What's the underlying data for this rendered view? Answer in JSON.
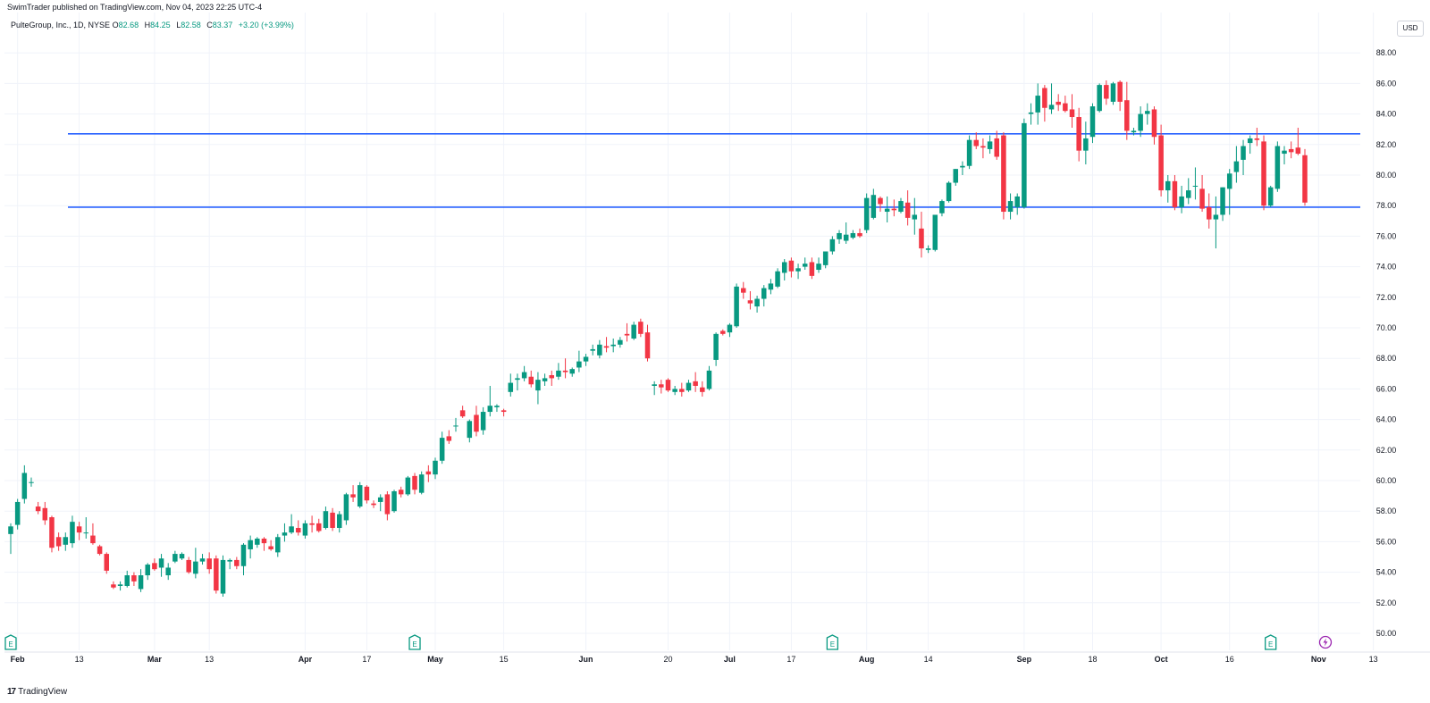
{
  "header": {
    "published": "SwimTrader published on TradingView.com, Nov 04, 2023 22:25 UTC-4"
  },
  "legend": {
    "symbol": "PulteGroup, Inc., 1D, NYSE",
    "open_label": "O",
    "open": "82.68",
    "high_label": "H",
    "high": "84.25",
    "low_label": "L",
    "low": "82.58",
    "close_label": "C",
    "close": "83.37",
    "change": "+3.20 (+3.99%)"
  },
  "currency": "USD",
  "footer": {
    "brand": "TradingView",
    "logo": "17"
  },
  "colors": {
    "up": "#089981",
    "down": "#f23645",
    "level": "#2962ff",
    "grid": "#f0f3fa"
  },
  "chart_data": {
    "type": "candlestick",
    "ylim": [
      49.2,
      89.0
    ],
    "y_ticks": [
      50,
      52,
      54,
      56,
      58,
      60,
      62,
      64,
      66,
      68,
      70,
      72,
      74,
      76,
      78,
      80,
      82,
      84,
      86,
      88
    ],
    "x_ticks": [
      {
        "label": "Feb",
        "i": 1,
        "major": true
      },
      {
        "label": "13",
        "i": 10,
        "major": false
      },
      {
        "label": "Mar",
        "i": 21,
        "major": true
      },
      {
        "label": "13",
        "i": 29,
        "major": false
      },
      {
        "label": "Apr",
        "i": 43,
        "major": true
      },
      {
        "label": "17",
        "i": 52,
        "major": false
      },
      {
        "label": "May",
        "i": 62,
        "major": true
      },
      {
        "label": "15",
        "i": 72,
        "major": false
      },
      {
        "label": "Jun",
        "i": 84,
        "major": true
      },
      {
        "label": "20",
        "i": 96,
        "major": false
      },
      {
        "label": "Jul",
        "i": 105,
        "major": true
      },
      {
        "label": "17",
        "i": 114,
        "major": false
      },
      {
        "label": "Aug",
        "i": 125,
        "major": true
      },
      {
        "label": "14",
        "i": 134,
        "major": false
      },
      {
        "label": "Sep",
        "i": 148,
        "major": true
      },
      {
        "label": "18",
        "i": 158,
        "major": false
      },
      {
        "label": "Oct",
        "i": 168,
        "major": true
      },
      {
        "label": "16",
        "i": 178,
        "major": false
      },
      {
        "label": "Nov",
        "i": 191,
        "major": true
      },
      {
        "label": "13",
        "i": 199,
        "major": false
      }
    ],
    "horizontal_levels": [
      82.7,
      77.9
    ],
    "earnings_markers": [
      0,
      59,
      120,
      184
    ],
    "event_markers": [
      192
    ],
    "ohlc": [
      [
        56.5,
        57.2,
        55.2,
        57.0
      ],
      [
        57.1,
        58.8,
        56.8,
        58.6
      ],
      [
        58.8,
        61.0,
        58.5,
        60.5
      ],
      [
        59.9,
        60.2,
        59.6,
        59.9
      ],
      [
        58.3,
        58.6,
        57.8,
        58.0
      ],
      [
        58.2,
        58.6,
        57.1,
        57.4
      ],
      [
        57.6,
        57.7,
        55.3,
        55.6
      ],
      [
        56.3,
        56.6,
        55.4,
        55.7
      ],
      [
        55.8,
        56.6,
        55.4,
        56.3
      ],
      [
        55.9,
        57.7,
        55.6,
        57.3
      ],
      [
        57.0,
        57.3,
        56.1,
        56.6
      ],
      [
        56.6,
        57.6,
        56.2,
        56.6
      ],
      [
        56.4,
        57.2,
        55.8,
        55.9
      ],
      [
        55.7,
        55.8,
        55.1,
        55.2
      ],
      [
        55.2,
        55.3,
        53.9,
        54.1
      ],
      [
        53.2,
        53.4,
        52.9,
        53.0
      ],
      [
        53.1,
        53.4,
        52.8,
        53.2
      ],
      [
        53.1,
        54.1,
        53.0,
        53.8
      ],
      [
        53.8,
        54.0,
        53.1,
        53.4
      ],
      [
        52.9,
        54.2,
        52.7,
        53.8
      ],
      [
        53.8,
        54.6,
        53.5,
        54.5
      ],
      [
        54.6,
        54.9,
        54.1,
        54.2
      ],
      [
        54.3,
        55.2,
        53.7,
        54.9
      ],
      [
        53.8,
        54.6,
        53.5,
        54.3
      ],
      [
        54.7,
        55.4,
        54.6,
        55.2
      ],
      [
        54.9,
        55.3,
        54.8,
        55.2
      ],
      [
        54.8,
        55.0,
        53.9,
        54.0
      ],
      [
        53.9,
        55.6,
        53.6,
        54.7
      ],
      [
        54.7,
        55.2,
        54.5,
        54.9
      ],
      [
        54.9,
        55.3,
        53.9,
        54.2
      ],
      [
        54.9,
        55.1,
        52.6,
        52.8
      ],
      [
        52.6,
        55.1,
        52.4,
        54.8
      ],
      [
        54.7,
        54.9,
        54.2,
        54.8
      ],
      [
        54.8,
        55.0,
        54.2,
        54.4
      ],
      [
        54.4,
        55.9,
        53.8,
        55.8
      ],
      [
        55.5,
        56.4,
        54.9,
        56.1
      ],
      [
        55.8,
        56.3,
        55.6,
        56.2
      ],
      [
        56.2,
        56.3,
        55.4,
        55.9
      ],
      [
        55.7,
        56.1,
        55.4,
        55.5
      ],
      [
        55.3,
        56.5,
        55.0,
        56.3
      ],
      [
        56.4,
        57.2,
        56.0,
        56.6
      ],
      [
        56.6,
        57.8,
        56.5,
        57.0
      ],
      [
        56.9,
        57.4,
        56.4,
        56.6
      ],
      [
        56.4,
        57.4,
        56.2,
        57.2
      ],
      [
        57.2,
        57.7,
        56.6,
        57.1
      ],
      [
        57.2,
        57.5,
        56.6,
        56.7
      ],
      [
        56.9,
        58.3,
        56.8,
        58.0
      ],
      [
        57.9,
        58.2,
        56.7,
        56.9
      ],
      [
        56.9,
        58.0,
        56.6,
        57.8
      ],
      [
        57.4,
        59.2,
        57.1,
        59.1
      ],
      [
        59.1,
        59.7,
        58.6,
        58.9
      ],
      [
        58.3,
        59.9,
        58.2,
        59.7
      ],
      [
        59.6,
        59.7,
        58.5,
        58.7
      ],
      [
        58.5,
        58.7,
        58.2,
        58.4
      ],
      [
        58.6,
        59.1,
        58.0,
        58.9
      ],
      [
        59.1,
        59.3,
        57.4,
        57.8
      ],
      [
        58.0,
        59.4,
        57.9,
        59.3
      ],
      [
        59.4,
        59.6,
        58.9,
        59.1
      ],
      [
        59.1,
        60.3,
        59.0,
        60.2
      ],
      [
        60.3,
        60.5,
        59.1,
        59.4
      ],
      [
        59.2,
        60.6,
        59.1,
        60.4
      ],
      [
        60.6,
        61.0,
        59.9,
        60.4
      ],
      [
        60.4,
        61.5,
        60.1,
        61.3
      ],
      [
        61.3,
        63.2,
        61.1,
        62.8
      ],
      [
        62.9,
        63.3,
        62.4,
        62.6
      ],
      [
        63.6,
        64.1,
        63.2,
        63.6
      ],
      [
        64.6,
        64.9,
        64.1,
        64.2
      ],
      [
        62.8,
        64.0,
        62.5,
        63.9
      ],
      [
        64.3,
        64.9,
        62.9,
        63.2
      ],
      [
        63.3,
        64.8,
        63.0,
        64.5
      ],
      [
        64.5,
        66.2,
        64.2,
        64.9
      ],
      [
        64.8,
        65.0,
        64.5,
        64.9
      ],
      [
        64.6,
        64.7,
        64.2,
        64.5
      ],
      [
        65.8,
        67.0,
        65.5,
        66.4
      ],
      [
        66.6,
        67.0,
        65.9,
        66.7
      ],
      [
        66.7,
        67.5,
        66.5,
        67.1
      ],
      [
        66.8,
        67.2,
        66.1,
        66.3
      ],
      [
        65.9,
        67.1,
        65.0,
        66.6
      ],
      [
        66.5,
        67.0,
        66.2,
        66.7
      ],
      [
        66.9,
        67.2,
        66.2,
        66.7
      ],
      [
        66.8,
        67.7,
        66.6,
        67.2
      ],
      [
        67.2,
        68.0,
        66.7,
        67.1
      ],
      [
        67.0,
        67.4,
        66.8,
        67.3
      ],
      [
        67.4,
        68.5,
        67.1,
        67.8
      ],
      [
        67.8,
        68.3,
        67.5,
        68.1
      ],
      [
        68.5,
        68.9,
        68.2,
        68.6
      ],
      [
        68.2,
        69.2,
        68.0,
        68.9
      ],
      [
        68.8,
        69.4,
        68.4,
        68.7
      ],
      [
        68.8,
        69.3,
        68.4,
        68.9
      ],
      [
        68.9,
        69.4,
        68.7,
        69.2
      ],
      [
        69.6,
        70.3,
        69.1,
        69.5
      ],
      [
        69.3,
        70.4,
        69.2,
        70.2
      ],
      [
        70.4,
        70.6,
        69.4,
        69.6
      ],
      [
        69.7,
        70.2,
        67.8,
        68.0
      ],
      [
        66.2,
        66.5,
        65.6,
        66.3
      ],
      [
        66.3,
        66.6,
        65.7,
        66.1
      ],
      [
        66.6,
        66.7,
        65.8,
        65.9
      ],
      [
        65.8,
        66.2,
        65.6,
        66.0
      ],
      [
        66.0,
        66.4,
        65.5,
        65.8
      ],
      [
        65.9,
        66.6,
        65.8,
        66.4
      ],
      [
        66.5,
        67.1,
        65.8,
        66.2
      ],
      [
        66.1,
        66.5,
        65.5,
        65.8
      ],
      [
        66.0,
        67.5,
        65.9,
        67.2
      ],
      [
        67.9,
        69.7,
        67.5,
        69.6
      ],
      [
        69.8,
        69.9,
        69.5,
        69.6
      ],
      [
        69.7,
        70.3,
        69.4,
        70.2
      ],
      [
        70.1,
        72.9,
        70.0,
        72.7
      ],
      [
        72.6,
        73.0,
        71.9,
        72.3
      ],
      [
        71.8,
        72.4,
        71.2,
        71.6
      ],
      [
        71.4,
        72.1,
        71.0,
        71.9
      ],
      [
        71.9,
        72.8,
        71.4,
        72.6
      ],
      [
        72.5,
        73.2,
        72.2,
        72.9
      ],
      [
        72.7,
        73.9,
        72.6,
        73.7
      ],
      [
        73.6,
        74.5,
        73.1,
        74.3
      ],
      [
        74.4,
        74.6,
        73.3,
        73.7
      ],
      [
        73.7,
        74.2,
        73.2,
        73.9
      ],
      [
        74.0,
        74.6,
        73.8,
        74.2
      ],
      [
        74.3,
        74.6,
        73.2,
        73.4
      ],
      [
        73.8,
        74.6,
        73.6,
        74.2
      ],
      [
        74.1,
        75.0,
        73.9,
        75.0
      ],
      [
        75.0,
        76.0,
        74.8,
        75.8
      ],
      [
        75.8,
        76.4,
        75.5,
        76.2
      ],
      [
        75.7,
        76.9,
        75.5,
        76.1
      ],
      [
        75.9,
        76.4,
        75.8,
        76.2
      ],
      [
        76.2,
        76.5,
        75.9,
        76.0
      ],
      [
        76.4,
        78.8,
        76.2,
        78.5
      ],
      [
        77.2,
        79.1,
        77.1,
        78.7
      ],
      [
        78.5,
        78.6,
        77.6,
        78.1
      ],
      [
        77.6,
        78.6,
        76.9,
        77.8
      ],
      [
        77.8,
        78.4,
        77.3,
        77.7
      ],
      [
        77.6,
        78.5,
        77.5,
        78.3
      ],
      [
        78.2,
        79.0,
        76.7,
        77.2
      ],
      [
        77.1,
        78.5,
        76.1,
        77.4
      ],
      [
        76.5,
        77.6,
        74.6,
        75.2
      ],
      [
        75.1,
        75.4,
        74.9,
        75.2
      ],
      [
        75.1,
        77.2,
        75.0,
        77.4
      ],
      [
        77.5,
        78.4,
        77.3,
        78.3
      ],
      [
        78.3,
        79.6,
        78.2,
        79.5
      ],
      [
        79.5,
        80.4,
        79.3,
        80.4
      ],
      [
        80.5,
        80.9,
        80.0,
        80.6
      ],
      [
        80.6,
        82.6,
        80.4,
        82.3
      ],
      [
        82.3,
        82.8,
        81.7,
        81.9
      ],
      [
        81.9,
        82.4,
        81.1,
        81.8
      ],
      [
        81.7,
        82.6,
        81.4,
        82.2
      ],
      [
        82.4,
        82.9,
        81.0,
        81.2
      ],
      [
        82.6,
        82.8,
        77.1,
        77.6
      ],
      [
        77.6,
        78.8,
        77.1,
        78.3
      ],
      [
        77.9,
        78.8,
        77.4,
        78.6
      ],
      [
        77.9,
        83.7,
        77.8,
        83.4
      ],
      [
        84.0,
        84.7,
        83.3,
        84.1
      ],
      [
        84.1,
        86.0,
        83.3,
        85.2
      ],
      [
        85.7,
        85.9,
        83.5,
        84.4
      ],
      [
        84.3,
        86.0,
        84.0,
        84.6
      ],
      [
        84.8,
        85.3,
        84.2,
        84.6
      ],
      [
        84.7,
        85.2,
        84.1,
        84.2
      ],
      [
        84.3,
        85.3,
        83.1,
        83.8
      ],
      [
        83.8,
        84.4,
        80.9,
        81.6
      ],
      [
        81.6,
        83.5,
        80.7,
        82.4
      ],
      [
        82.5,
        84.7,
        82.1,
        84.5
      ],
      [
        84.2,
        86.0,
        84.1,
        85.9
      ],
      [
        85.9,
        86.2,
        84.6,
        85.0
      ],
      [
        84.8,
        86.1,
        84.6,
        86.0
      ],
      [
        86.1,
        86.2,
        84.2,
        84.8
      ],
      [
        84.9,
        86.1,
        82.3,
        82.9
      ],
      [
        82.8,
        83.1,
        82.6,
        82.9
      ],
      [
        82.9,
        84.5,
        82.5,
        84.0
      ],
      [
        84.0,
        84.7,
        83.3,
        84.2
      ],
      [
        84.3,
        84.5,
        82.0,
        82.5
      ],
      [
        82.6,
        83.3,
        78.6,
        79.0
      ],
      [
        79.0,
        80.0,
        78.2,
        79.6
      ],
      [
        79.6,
        80.0,
        77.7,
        77.9
      ],
      [
        77.9,
        79.3,
        77.5,
        78.6
      ],
      [
        78.5,
        79.8,
        78.1,
        79.0
      ],
      [
        79.3,
        80.5,
        78.4,
        79.3
      ],
      [
        79.1,
        80.0,
        77.6,
        77.8
      ],
      [
        77.9,
        78.8,
        76.5,
        77.1
      ],
      [
        77.1,
        78.6,
        75.2,
        77.4
      ],
      [
        77.4,
        79.2,
        77.0,
        79.2
      ],
      [
        79.1,
        80.4,
        77.4,
        80.1
      ],
      [
        80.2,
        81.9,
        79.5,
        80.9
      ],
      [
        81.0,
        82.3,
        80.0,
        81.9
      ],
      [
        82.1,
        82.6,
        81.4,
        82.4
      ],
      [
        82.4,
        83.1,
        81.9,
        82.3
      ],
      [
        82.2,
        82.6,
        77.7,
        78.0
      ],
      [
        78.0,
        79.3,
        77.9,
        79.2
      ],
      [
        79.1,
        82.2,
        78.9,
        81.9
      ],
      [
        81.4,
        81.9,
        80.7,
        81.6
      ],
      [
        81.7,
        82.2,
        81.1,
        81.5
      ],
      [
        81.8,
        83.1,
        81.3,
        81.4
      ],
      [
        81.3,
        81.7,
        78.0,
        78.2
      ]
    ]
  }
}
